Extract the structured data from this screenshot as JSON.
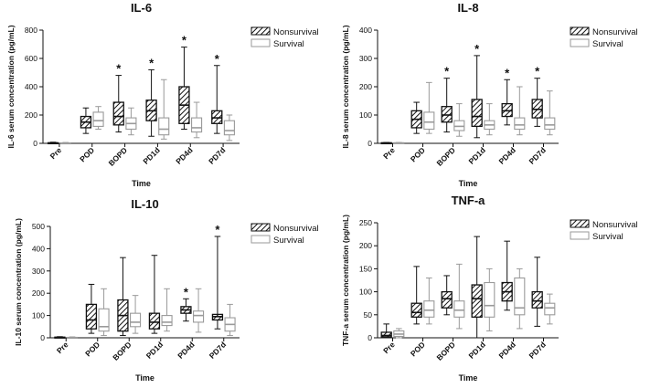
{
  "chart_data": [
    {
      "type": "box",
      "title": "IL-6",
      "ylabel": "IL-6 serum concentration (pg/mL)",
      "xlabel": "Time",
      "ylim": [
        0,
        800
      ],
      "yticks": [
        0,
        200,
        400,
        600,
        800
      ],
      "categories": [
        "Pre",
        "POD",
        "BOPD",
        "PD1d",
        "PD4d",
        "PD7d"
      ],
      "legend": [
        "Nonsurvival",
        "Survival"
      ],
      "legend_position": "top-right",
      "significance": [
        "",
        "",
        "*",
        "*",
        "*",
        "*"
      ],
      "series": [
        {
          "name": "Nonsurvival",
          "pattern": "hatched",
          "boxes": [
            {
              "min": 0,
              "q1": 0,
              "median": 2,
              "q3": 4,
              "max": 8
            },
            {
              "min": 70,
              "q1": 110,
              "median": 150,
              "q3": 190,
              "max": 250
            },
            {
              "min": 80,
              "q1": 130,
              "median": 190,
              "q3": 290,
              "max": 480
            },
            {
              "min": 50,
              "q1": 160,
              "median": 230,
              "q3": 305,
              "max": 520
            },
            {
              "min": 100,
              "q1": 140,
              "median": 270,
              "q3": 400,
              "max": 680
            },
            {
              "min": 70,
              "q1": 140,
              "median": 180,
              "q3": 230,
              "max": 550
            }
          ]
        },
        {
          "name": "Survival",
          "pattern": "open",
          "boxes": [
            {
              "min": 0,
              "q1": 0,
              "median": 1,
              "q3": 3,
              "max": 6
            },
            {
              "min": 100,
              "q1": 120,
              "median": 160,
              "q3": 220,
              "max": 260
            },
            {
              "min": 60,
              "q1": 100,
              "median": 140,
              "q3": 180,
              "max": 250
            },
            {
              "min": 30,
              "q1": 60,
              "median": 100,
              "q3": 180,
              "max": 450
            },
            {
              "min": 40,
              "q1": 80,
              "median": 110,
              "q3": 180,
              "max": 290
            },
            {
              "min": 20,
              "q1": 60,
              "median": 90,
              "q3": 160,
              "max": 200
            }
          ]
        }
      ]
    },
    {
      "type": "box",
      "title": "IL-8",
      "ylabel": "IL-8 serum concentration (pg/mL)",
      "xlabel": "Time",
      "ylim": [
        0,
        400
      ],
      "yticks": [
        0,
        100,
        200,
        300,
        400
      ],
      "categories": [
        "Pre",
        "POD",
        "BOPD",
        "PD1d",
        "PD4d",
        "PD7d"
      ],
      "legend": [
        "Nonsurvival",
        "Survival"
      ],
      "legend_position": "top-right",
      "significance": [
        "",
        "",
        "*",
        "*",
        "*",
        "*"
      ],
      "series": [
        {
          "name": "Nonsurvival",
          "pattern": "hatched",
          "boxes": [
            {
              "min": 0,
              "q1": 0,
              "median": 1,
              "q3": 2,
              "max": 3
            },
            {
              "min": 35,
              "q1": 55,
              "median": 85,
              "q3": 115,
              "max": 145
            },
            {
              "min": 40,
              "q1": 75,
              "median": 100,
              "q3": 130,
              "max": 230
            },
            {
              "min": 20,
              "q1": 60,
              "median": 95,
              "q3": 155,
              "max": 310
            },
            {
              "min": 65,
              "q1": 95,
              "median": 115,
              "q3": 140,
              "max": 225
            },
            {
              "min": 60,
              "q1": 90,
              "median": 120,
              "q3": 155,
              "max": 230
            }
          ]
        },
        {
          "name": "Survival",
          "pattern": "open",
          "boxes": [
            {
              "min": 0,
              "q1": 0,
              "median": 1,
              "q3": 2,
              "max": 3
            },
            {
              "min": 35,
              "q1": 50,
              "median": 75,
              "q3": 110,
              "max": 215
            },
            {
              "min": 25,
              "q1": 45,
              "median": 60,
              "q3": 80,
              "max": 140
            },
            {
              "min": 30,
              "q1": 50,
              "median": 65,
              "q3": 80,
              "max": 140
            },
            {
              "min": 30,
              "q1": 50,
              "median": 65,
              "q3": 90,
              "max": 200
            },
            {
              "min": 30,
              "q1": 50,
              "median": 65,
              "q3": 90,
              "max": 185
            }
          ]
        }
      ]
    },
    {
      "type": "box",
      "title": "IL-10",
      "ylabel": "IL-10 serum concentration (pg/mL)",
      "xlabel": "Time",
      "ylim": [
        0,
        500
      ],
      "yticks": [
        0,
        100,
        200,
        300,
        400,
        500
      ],
      "categories": [
        "Pre",
        "POD",
        "BOPD",
        "PD1d",
        "PD4d",
        "PD7d"
      ],
      "legend": [
        "Nonsurvival",
        "Survival"
      ],
      "legend_position": "top-right",
      "significance": [
        "",
        "",
        "",
        "",
        "*",
        "*"
      ],
      "series": [
        {
          "name": "Nonsurvival",
          "pattern": "hatched",
          "boxes": [
            {
              "min": 0,
              "q1": 0,
              "median": 1,
              "q3": 3,
              "max": 5
            },
            {
              "min": 20,
              "q1": 40,
              "median": 80,
              "q3": 150,
              "max": 240
            },
            {
              "min": 10,
              "q1": 30,
              "median": 100,
              "q3": 170,
              "max": 360
            },
            {
              "min": 20,
              "q1": 40,
              "median": 70,
              "q3": 110,
              "max": 370
            },
            {
              "min": 75,
              "q1": 110,
              "median": 125,
              "q3": 140,
              "max": 175
            },
            {
              "min": 40,
              "q1": 80,
              "median": 95,
              "q3": 105,
              "max": 455
            }
          ]
        },
        {
          "name": "Survival",
          "pattern": "open",
          "boxes": [
            {
              "min": 0,
              "q1": 0,
              "median": 1,
              "q3": 2,
              "max": 4
            },
            {
              "min": 10,
              "q1": 30,
              "median": 50,
              "q3": 130,
              "max": 220
            },
            {
              "min": 20,
              "q1": 50,
              "median": 70,
              "q3": 110,
              "max": 190
            },
            {
              "min": 30,
              "q1": 55,
              "median": 70,
              "q3": 100,
              "max": 220
            },
            {
              "min": 25,
              "q1": 70,
              "median": 100,
              "q3": 120,
              "max": 220
            },
            {
              "min": 10,
              "q1": 30,
              "median": 60,
              "q3": 90,
              "max": 150
            }
          ]
        }
      ]
    },
    {
      "type": "box",
      "title": "TNF-a",
      "ylabel": "TNF-a serum concentration (pg/mL)",
      "xlabel": "Time",
      "ylim": [
        0,
        250
      ],
      "yticks": [
        0,
        50,
        100,
        150,
        200,
        250
      ],
      "categories": [
        "Pre",
        "POD",
        "BOPD",
        "PD1d",
        "PD4d",
        "PD7d"
      ],
      "legend": [
        "Nonsurvival",
        "Survival"
      ],
      "legend_position": "top-right",
      "significance": [
        "",
        "",
        "",
        "",
        "",
        ""
      ],
      "series": [
        {
          "name": "Nonsurvival",
          "pattern": "hatched",
          "boxes": [
            {
              "min": 0,
              "q1": 2,
              "median": 5,
              "q3": 12,
              "max": 30
            },
            {
              "min": 30,
              "q1": 45,
              "median": 55,
              "q3": 75,
              "max": 155
            },
            {
              "min": 50,
              "q1": 65,
              "median": 85,
              "q3": 100,
              "max": 135
            },
            {
              "min": 0,
              "q1": 45,
              "median": 85,
              "q3": 115,
              "max": 220
            },
            {
              "min": 60,
              "q1": 80,
              "median": 100,
              "q3": 120,
              "max": 210
            },
            {
              "min": 25,
              "q1": 65,
              "median": 80,
              "q3": 100,
              "max": 175
            }
          ]
        },
        {
          "name": "Survival",
          "pattern": "open",
          "boxes": [
            {
              "min": 0,
              "q1": 3,
              "median": 8,
              "q3": 15,
              "max": 20
            },
            {
              "min": 30,
              "q1": 45,
              "median": 60,
              "q3": 80,
              "max": 130
            },
            {
              "min": 20,
              "q1": 45,
              "median": 60,
              "q3": 80,
              "max": 160
            },
            {
              "min": 15,
              "q1": 45,
              "median": 70,
              "q3": 120,
              "max": 150
            },
            {
              "min": 20,
              "q1": 50,
              "median": 65,
              "q3": 130,
              "max": 150
            },
            {
              "min": 30,
              "q1": 50,
              "median": 65,
              "q3": 75,
              "max": 95
            }
          ]
        }
      ]
    }
  ]
}
